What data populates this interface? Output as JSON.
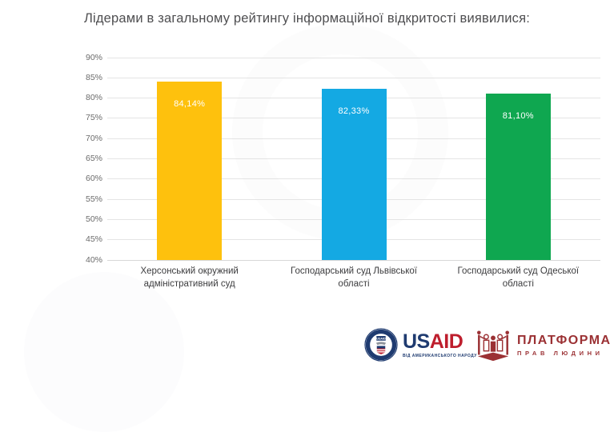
{
  "title": "Лідерами в загальному рейтингу інформаційної відкритості виявилися:",
  "chart_data": {
    "type": "bar",
    "title": "Лідерами в загальному рейтингу інформаційної відкритості виявилися:",
    "categories": [
      "Херсонський окружний адміністративний суд",
      "Господарський суд Львівської області",
      "Господарський суд Одеської області"
    ],
    "values": [
      84.14,
      82.33,
      81.1
    ],
    "value_labels": [
      "84,14%",
      "82,33%",
      "81,10%"
    ],
    "bar_colors": [
      "#fec10d",
      "#14a9e3",
      "#0fa750"
    ],
    "annotation_color": "#ffffff",
    "xlabel": "",
    "ylabel": "",
    "ylim": [
      40,
      90
    ],
    "ytick_step": 5,
    "ytick_labels": [
      "40%",
      "45%",
      "50%",
      "55%",
      "60%",
      "65%",
      "70%",
      "75%",
      "80%",
      "85%",
      "90%"
    ],
    "grid": true,
    "legend": "none"
  },
  "footer": {
    "usaid": {
      "brand_us": "US",
      "brand_aid": "AID",
      "seal_label": "USAID",
      "tagline": "ВІД АМЕРИКАНСЬКОГО НАРОДУ",
      "navy": "#1f3b70",
      "red": "#be1e2d"
    },
    "platform": {
      "name": "ПЛАТФОРМА",
      "subtitle": "ПРАВ ЛЮДИНИ",
      "color": "#9b3134"
    }
  }
}
